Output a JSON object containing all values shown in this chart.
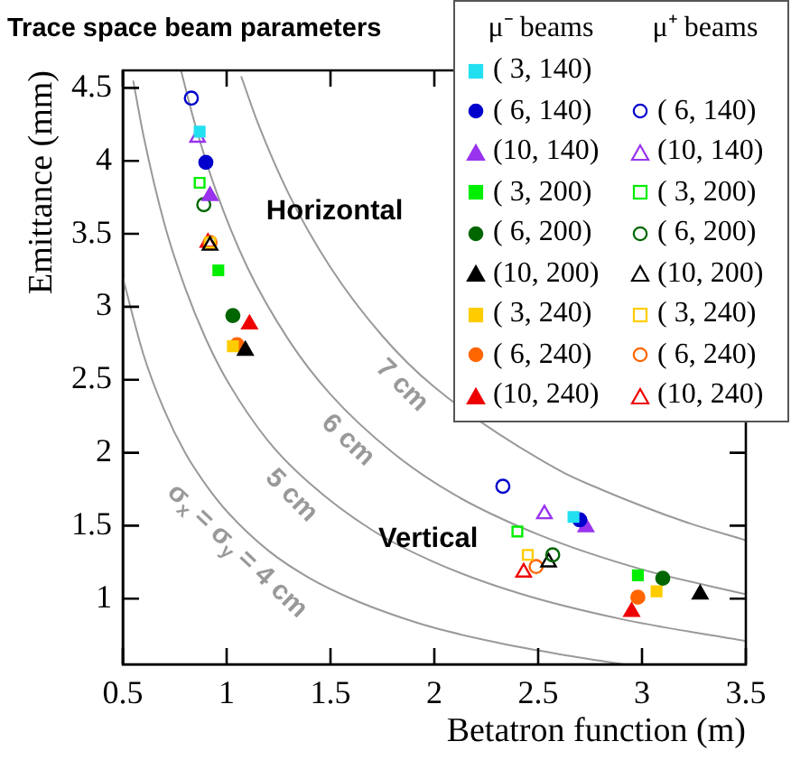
{
  "chart_data": {
    "type": "scatter",
    "title": "Trace space beam parameters",
    "xlabel": "Betatron function (m)",
    "ylabel": "Emittance (mm)",
    "xlim": [
      0.5,
      3.5
    ],
    "ylim": [
      0.55,
      4.62
    ],
    "xticks": [
      0.5,
      1,
      1.5,
      2,
      2.5,
      3,
      3.5
    ],
    "yticks": [
      1,
      1.5,
      2,
      2.5,
      3,
      3.5,
      4,
      4.5
    ],
    "legend": "top right",
    "annotations": [
      "μ⁻ beams",
      "μ⁺ beams",
      "Horizontal",
      "Vertical"
    ],
    "series": [
      {
        "name": "( 3, 140)",
        "type": "scatter",
        "marker": "square",
        "color": "#22e0f0",
        "x": [
          0.87,
          2.67
        ],
        "values": [
          4.2,
          1.56
        ]
      },
      {
        "name": "( 6, 140)",
        "type": "scatter",
        "marker": "circle",
        "color": "#0000cc",
        "x": [
          0.9,
          2.7
        ],
        "values": [
          3.99,
          1.54
        ]
      },
      {
        "name": "(10, 140)",
        "type": "scatter",
        "marker": "triangle",
        "color": "#9933ee",
        "x": [
          0.92,
          2.73
        ],
        "values": [
          3.76,
          1.49
        ]
      },
      {
        "name": "( 3, 200)",
        "type": "scatter",
        "marker": "square",
        "color": "#00ee00",
        "x": [
          0.96,
          2.98
        ],
        "values": [
          3.25,
          1.16
        ]
      },
      {
        "name": "( 6, 200)",
        "type": "scatter",
        "marker": "circle",
        "color": "#006600",
        "x": [
          1.03,
          3.1
        ],
        "values": [
          2.94,
          1.14
        ]
      },
      {
        "name": "(10, 200)",
        "type": "scatter",
        "marker": "triangle",
        "color": "#000000",
        "x": [
          1.09,
          3.28
        ],
        "values": [
          2.7,
          1.03
        ]
      },
      {
        "name": "( 3, 240)",
        "type": "scatter",
        "marker": "square",
        "color": "#ffcc00",
        "x": [
          1.03,
          3.07
        ],
        "values": [
          2.73,
          1.05
        ]
      },
      {
        "name": "( 6, 240)",
        "type": "scatter",
        "marker": "circle",
        "color": "#ff6600",
        "x": [
          1.05,
          2.98
        ],
        "values": [
          2.74,
          1.01
        ]
      },
      {
        "name": "(10, 240)",
        "type": "scatter",
        "marker": "triangle",
        "color": "#ee0000",
        "x": [
          1.11,
          2.95
        ],
        "values": [
          2.88,
          0.91
        ]
      },
      {
        "name": "( 6, 140)",
        "type": "scatter",
        "marker": "circle-open",
        "color": "#0000cc",
        "x": [
          0.83,
          2.33
        ],
        "values": [
          4.43,
          1.77
        ]
      },
      {
        "name": "(10, 140)",
        "type": "scatter",
        "marker": "triangle-open",
        "color": "#9933ee",
        "x": [
          0.86,
          2.53
        ],
        "values": [
          4.16,
          1.58
        ]
      },
      {
        "name": "( 3, 200)",
        "type": "scatter",
        "marker": "square-open",
        "color": "#00ee00",
        "x": [
          0.87,
          2.4
        ],
        "values": [
          3.85,
          1.46
        ]
      },
      {
        "name": "( 6, 200)",
        "type": "scatter",
        "marker": "circle-open",
        "color": "#006600",
        "x": [
          0.89,
          2.57
        ],
        "values": [
          3.7,
          1.3
        ]
      },
      {
        "name": "(10, 200)",
        "type": "scatter",
        "marker": "triangle-open",
        "color": "#000000",
        "x": [
          0.92,
          2.55
        ],
        "values": [
          3.42,
          1.25
        ]
      },
      {
        "name": "( 3, 240)",
        "type": "scatter",
        "marker": "square-open",
        "color": "#ffcc00",
        "x": [
          0.92,
          2.45
        ],
        "values": [
          3.44,
          1.3
        ]
      },
      {
        "name": "( 6, 240)",
        "type": "scatter",
        "marker": "circle-open",
        "color": "#ff6600",
        "x": [
          0.92,
          2.49
        ],
        "values": [
          3.44,
          1.22
        ]
      },
      {
        "name": "(10, 240)",
        "type": "scatter",
        "marker": "triangle-open",
        "color": "#ee0000",
        "x": [
          0.91,
          2.43
        ],
        "values": [
          3.44,
          1.18
        ]
      },
      {
        "name": "σ$_{x}$ = σ$_{y}$ = 4 cm",
        "type": "line",
        "marker": "none",
        "color": "#999999",
        "x": [
          0.5,
          0.6,
          0.7,
          0.8,
          0.9,
          1.0,
          1.2,
          1.4,
          1.6,
          1.8,
          2.0,
          2.3,
          2.6,
          2.91
        ],
        "values": [
          3.2,
          2.67,
          2.29,
          2.0,
          1.78,
          1.6,
          1.33,
          1.14,
          1.0,
          0.89,
          0.8,
          0.7,
          0.62,
          0.55
        ]
      },
      {
        "name": "5 cm",
        "type": "line",
        "marker": "none",
        "color": "#999999",
        "x": [
          0.55,
          0.6,
          0.7,
          0.8,
          0.9,
          1.0,
          1.2,
          1.4,
          1.7,
          2.0,
          2.4,
          2.9,
          3.5
        ],
        "values": [
          4.55,
          4.17,
          3.57,
          3.13,
          2.78,
          2.5,
          2.08,
          1.79,
          1.47,
          1.25,
          1.04,
          0.86,
          0.71
        ]
      },
      {
        "name": "6 cm",
        "type": "line",
        "marker": "none",
        "color": "#999999",
        "x": [
          0.78,
          0.85,
          0.95,
          1.1,
          1.3,
          1.5,
          1.8,
          2.1,
          2.5,
          3.0,
          3.5
        ],
        "values": [
          4.62,
          4.24,
          3.79,
          3.27,
          2.77,
          2.4,
          2.0,
          1.71,
          1.44,
          1.2,
          1.03
        ]
      },
      {
        "name": "7 cm",
        "type": "line",
        "marker": "none",
        "color": "#999999",
        "x": [
          1.07,
          1.15,
          1.3,
          1.5,
          1.75,
          2.0,
          2.6,
          2.8,
          3.2,
          3.5
        ],
        "values": [
          4.58,
          4.26,
          3.77,
          3.27,
          2.8,
          2.45,
          1.88,
          1.75,
          1.53,
          1.4
        ]
      }
    ]
  }
}
